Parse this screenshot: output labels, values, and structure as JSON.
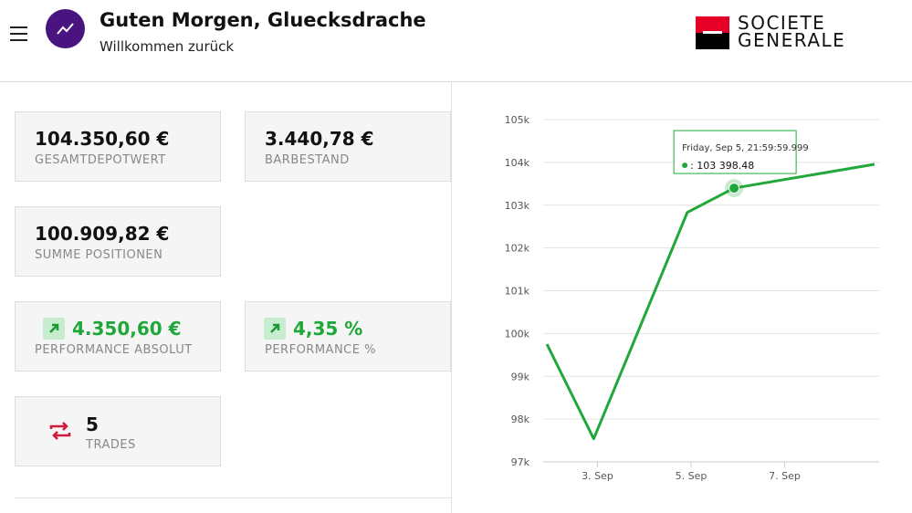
{
  "header": {
    "greeting": "Guten Morgen, Gluecksdrache",
    "subtitle": "Willkommen zurück",
    "logo": [
      "SOCIETE",
      "GENERALE"
    ]
  },
  "cards": [
    {
      "value": "104.350,60 €",
      "label": "GESAMTDEPOTWERT"
    },
    {
      "value": "3.440,78 €",
      "label": "BARBESTAND"
    },
    {
      "value": "100.909,82 €",
      "label": "SUMME POSITIONEN"
    },
    {
      "value": "4.350,60 €",
      "label": "PERFORMANCE ABSOLUT"
    },
    {
      "value": "4,35 %",
      "label": "PERFORMANCE %"
    },
    {
      "value": "5",
      "label": "TRADES"
    }
  ],
  "chart_data": {
    "type": "line",
    "x": [
      1.92,
      2.92,
      4.92,
      5.92,
      8.92
    ],
    "series": [
      {
        "color": "#22a83a",
        "values": [
          99750,
          97540,
          102830,
          103398.48,
          103955
        ]
      }
    ],
    "xlim": [
      1.84,
      9.02
    ],
    "xticks": [
      {
        "value": 3,
        "label": "3. Sep"
      },
      {
        "value": 5,
        "label": "5. Sep"
      },
      {
        "value": 7,
        "label": "7. Sep"
      }
    ],
    "ylim": [
      97000,
      105000
    ],
    "yticks": [
      {
        "value": 97000,
        "label": "97k"
      },
      {
        "value": 98000,
        "label": "98k"
      },
      {
        "value": 99000,
        "label": "99k"
      },
      {
        "value": 100000,
        "label": "100k"
      },
      {
        "value": 101000,
        "label": "101k"
      },
      {
        "value": 102000,
        "label": "102k"
      },
      {
        "value": 103000,
        "label": "103k"
      },
      {
        "value": 104000,
        "label": "104k"
      },
      {
        "value": 105000,
        "label": "105k"
      }
    ],
    "grid": true,
    "tooltip": {
      "title": "Friday, Sep 5, 21:59:59.999",
      "text": ": 103 398.48"
    }
  }
}
